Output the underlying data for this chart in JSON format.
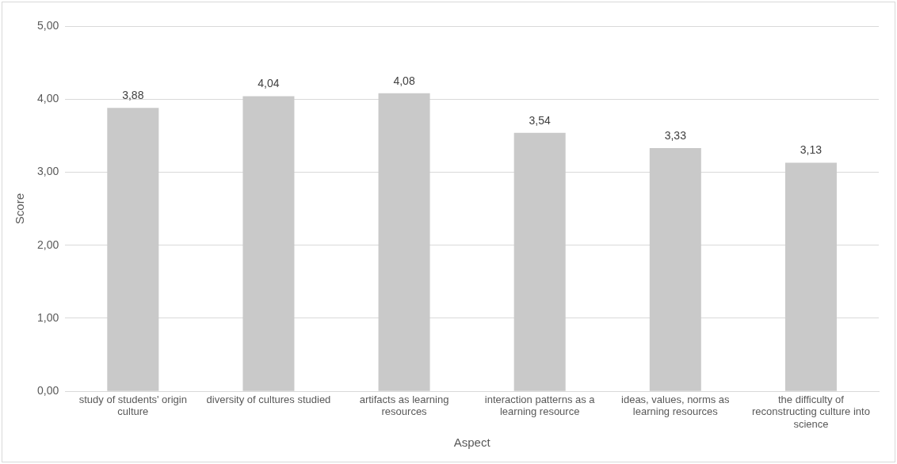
{
  "chart_data": {
    "type": "bar",
    "categories": [
      "study of students' origin culture",
      "diversity of cultures studied",
      "artifacts as learning resources",
      "interaction patterns as a learning resource",
      "ideas, values, norms as learning resources",
      "the difficulty of reconstructing culture into science"
    ],
    "values": [
      3.88,
      4.04,
      4.08,
      3.54,
      3.33,
      3.13
    ],
    "value_labels": [
      "3,88",
      "4,04",
      "4,08",
      "3,54",
      "3,33",
      "3,13"
    ],
    "color": "#c9c9c9",
    "xlabel": "Aspect",
    "ylabel": "Score",
    "ylim": [
      0,
      5
    ],
    "yticks": [
      {
        "value": 0,
        "label": "0,00"
      },
      {
        "value": 1,
        "label": "1,00"
      },
      {
        "value": 2,
        "label": "2,00"
      },
      {
        "value": 3,
        "label": "3,00"
      },
      {
        "value": 4,
        "label": "4,00"
      },
      {
        "value": 5,
        "label": "5,00"
      }
    ],
    "grid": "y",
    "legend": false
  }
}
